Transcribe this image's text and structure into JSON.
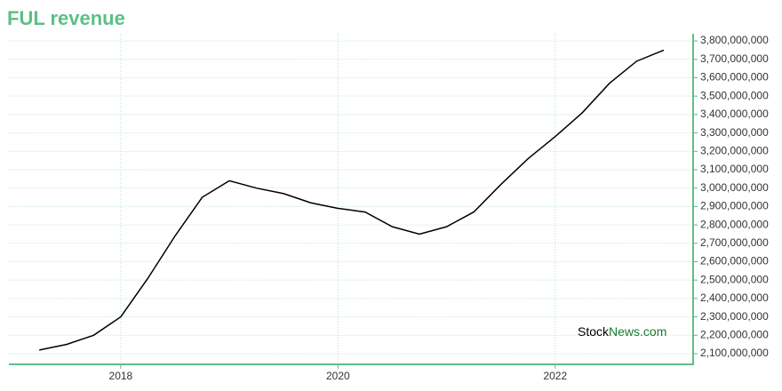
{
  "chart_data": {
    "type": "line",
    "title": "FUL revenue",
    "x": [
      2017.25,
      2017.5,
      2017.75,
      2018.0,
      2018.25,
      2018.5,
      2018.75,
      2019.0,
      2019.25,
      2019.5,
      2019.75,
      2020.0,
      2020.25,
      2020.5,
      2020.75,
      2021.0,
      2021.25,
      2021.5,
      2021.75,
      2022.0,
      2022.25,
      2022.5,
      2022.75,
      2023.0
    ],
    "series": [
      {
        "color": "#000000",
        "values": [
          2120000000,
          2150000000,
          2200000000,
          2300000000,
          2510000000,
          2740000000,
          2950000000,
          3040000000,
          3000000000,
          2970000000,
          2920000000,
          2890000000,
          2870000000,
          2790000000,
          2750000000,
          2790000000,
          2870000000,
          3020000000,
          3160000000,
          3280000000,
          3410000000,
          3570000000,
          3690000000,
          3750000000
        ]
      }
    ],
    "xlim": [
      2016.97,
      2023.27
    ],
    "xticks": [
      2018,
      2020,
      2022
    ],
    "ylim": [
      2042000000,
      3839000000
    ],
    "yticks": [
      {
        "value": 2100000000,
        "label": "2,100,000,000"
      },
      {
        "value": 2200000000,
        "label": "2,200,000,000"
      },
      {
        "value": 2300000000,
        "label": "2,300,000,000"
      },
      {
        "value": 2400000000,
        "label": "2,400,000,000"
      },
      {
        "value": 2500000000,
        "label": "2,500,000,000"
      },
      {
        "value": 2600000000,
        "label": "2,600,000,000"
      },
      {
        "value": 2700000000,
        "label": "2,700,000,000"
      },
      {
        "value": 2800000000,
        "label": "2,800,000,000"
      },
      {
        "value": 2900000000,
        "label": "2,900,000,000"
      },
      {
        "value": 3000000000,
        "label": "3,000,000,000"
      },
      {
        "value": 3100000000,
        "label": "3,100,000,000"
      },
      {
        "value": 3200000000,
        "label": "3,200,000,000"
      },
      {
        "value": 3300000000,
        "label": "3,300,000,000"
      },
      {
        "value": 3400000000,
        "label": "3,400,000,000"
      },
      {
        "value": 3500000000,
        "label": "3,500,000,000"
      },
      {
        "value": 3600000000,
        "label": "3,600,000,000"
      },
      {
        "value": 3700000000,
        "label": "3,700,000,000"
      },
      {
        "value": 3800000000,
        "label": "3,800,000,000"
      }
    ],
    "grid": true,
    "axis_color": "#5cbf85",
    "watermark": [
      {
        "text": "Stock",
        "color": "#000000"
      },
      {
        "text": "News.com",
        "color": "#1a7a2e"
      }
    ]
  }
}
